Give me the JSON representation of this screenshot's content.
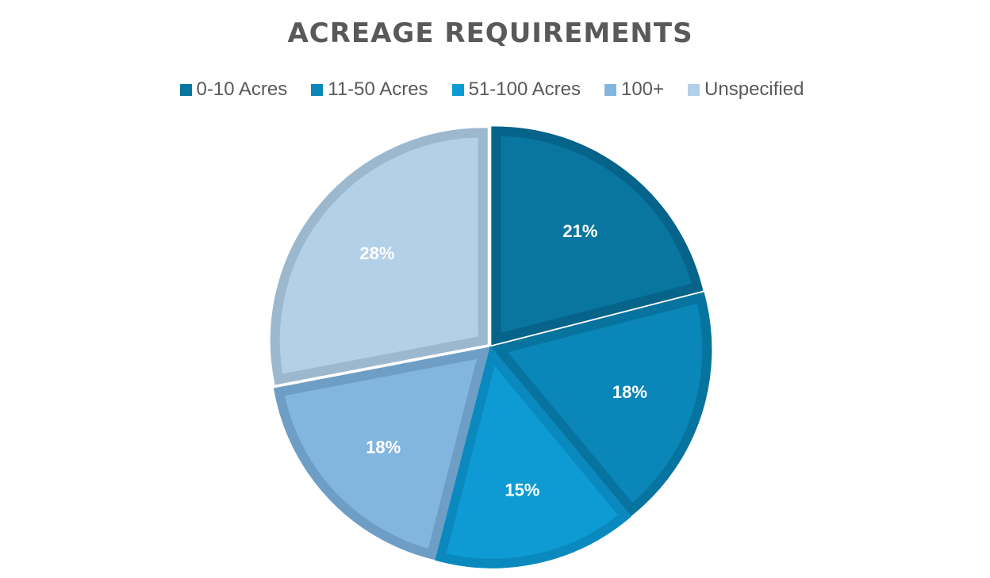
{
  "chart_data": {
    "type": "pie",
    "title": "ACREAGE REQUIREMENTS",
    "legend_position": "top",
    "categories": [
      "0-10 Acres",
      "11-50 Acres",
      "51-100 Acres",
      "100+",
      "Unspecified"
    ],
    "values": [
      21,
      18,
      15,
      18,
      28
    ],
    "data_labels": [
      "21%",
      "18%",
      "15%",
      "18%",
      "28%"
    ],
    "colors": [
      "#08769E",
      "#0A86B8",
      "#0E9BD3",
      "#82B6DE",
      "#B2D0E8"
    ],
    "border_colors": [
      "#06638A",
      "#07739F",
      "#0A89BE",
      "#6E9EC6",
      "#9BB8CF"
    ]
  }
}
